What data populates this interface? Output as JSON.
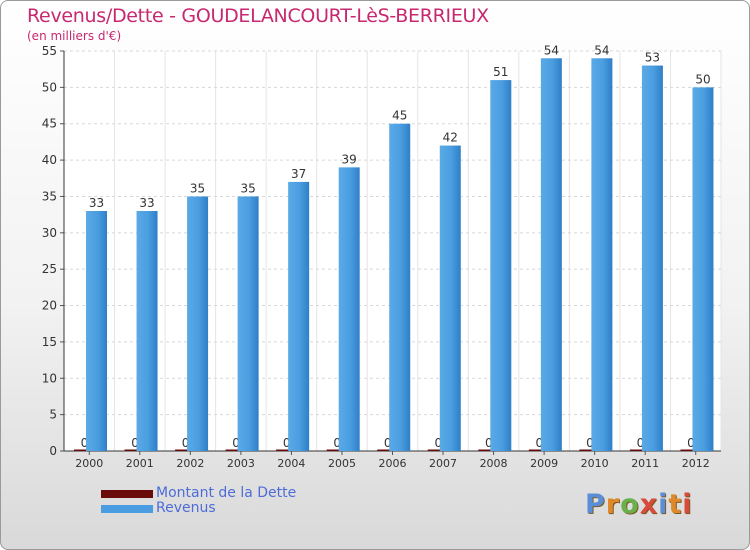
{
  "header": {
    "title": "Revenus/Dette - GOUDELANCOURT-LèS-BERRIEUX",
    "subtitle": "(en milliers d'€)"
  },
  "legend": {
    "items": [
      {
        "label": "Montant de la Dette",
        "color": "#6b0a0a"
      },
      {
        "label": "Revenus",
        "color": "#4a9de0"
      }
    ]
  },
  "logo": {
    "text": "Proxiti",
    "colors": [
      "#5a8fd8",
      "#e0892a",
      "#6ab04c",
      "#d84a3a",
      "#5a8fd8",
      "#e0892a",
      "#d84a3a"
    ]
  },
  "chart_data": {
    "type": "bar",
    "categories": [
      "2000",
      "2001",
      "2002",
      "2003",
      "2004",
      "2005",
      "2006",
      "2007",
      "2008",
      "2009",
      "2010",
      "2011",
      "2012"
    ],
    "series": [
      {
        "name": "Montant de la Dette",
        "values": [
          0,
          0,
          0,
          0,
          0,
          0,
          0,
          0,
          0,
          0,
          0,
          0,
          0
        ],
        "color": "#6b0a0a"
      },
      {
        "name": "Revenus",
        "values": [
          33,
          33,
          35,
          35,
          37,
          39,
          45,
          42,
          51,
          54,
          54,
          53,
          50
        ],
        "color": "#4a9de0"
      }
    ],
    "ylim": [
      0,
      55
    ],
    "yticks": [
      0,
      5,
      10,
      15,
      20,
      25,
      30,
      35,
      40,
      45,
      50,
      55
    ],
    "grid": true,
    "legend_position": "bottom-left"
  }
}
